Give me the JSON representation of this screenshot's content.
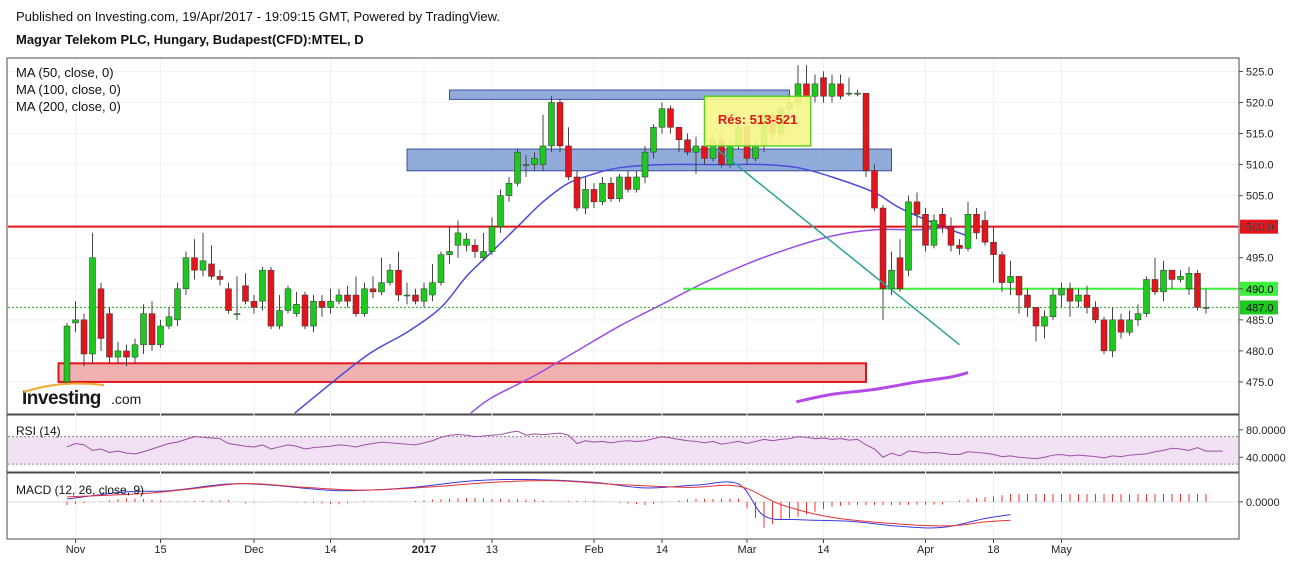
{
  "header": {
    "published": "Published on Investing.com, 19/Apr/2017 - 19:09:15 GMT, Powered by TradingView.",
    "symbol": "Magyar Telekom PLC, Hungary, Budapest(CFD):MTEL, D"
  },
  "watermark": {
    "brand": "Investing",
    "suffix": ".com"
  },
  "colors": {
    "up": "#1ec81e",
    "down": "#e3151c",
    "ma50": "#4b4bdc",
    "ma100": "#9b4be6",
    "ma200": "#b44be8",
    "resistance_line": "#e3151c",
    "level_line": "#3cf03c",
    "trend": "#2aa198",
    "rsi": "#a04ba8",
    "macd": "#3a3ae0",
    "signal": "#e83232"
  },
  "chart_data": {
    "type": "candlestick",
    "indicators": [
      "MA (50, close, 0)",
      "MA (100, close, 0)",
      "MA (200, close, 0)"
    ],
    "ylim": [
      470,
      527
    ],
    "yticks": [
      475,
      480,
      485,
      490,
      495,
      500,
      505,
      510,
      515,
      520,
      525
    ],
    "x_ticks": [
      {
        "i": 1,
        "label": "Nov"
      },
      {
        "i": 11,
        "label": "15"
      },
      {
        "i": 22,
        "label": "Dec"
      },
      {
        "i": 31,
        "label": "14"
      },
      {
        "i": 42,
        "label": "2017"
      },
      {
        "i": 50,
        "label": "13"
      },
      {
        "i": 62,
        "label": "Feb"
      },
      {
        "i": 70,
        "label": "14"
      },
      {
        "i": 80,
        "label": "Mar"
      },
      {
        "i": 89,
        "label": "14"
      },
      {
        "i": 101,
        "label": "Apr"
      },
      {
        "i": 109,
        "label": "18"
      },
      {
        "i": 117,
        "label": "May"
      }
    ],
    "candles": [
      [
        475.0,
        484.0,
        474.5,
        484.5
      ],
      [
        484.5,
        485.0,
        483.0,
        488.0
      ],
      [
        485.0,
        479.5,
        477.5,
        486.0
      ],
      [
        479.5,
        495.0,
        478.0,
        499.0
      ],
      [
        490.0,
        482.0,
        480.0,
        491.0
      ],
      [
        486.0,
        479.0,
        478.0,
        487.0
      ],
      [
        479.0,
        480.0,
        478.0,
        481.5
      ],
      [
        480.0,
        479.0,
        477.5,
        481.0
      ],
      [
        479.0,
        481.0,
        478.0,
        482.0
      ],
      [
        481.0,
        486.0,
        479.5,
        487.5
      ],
      [
        486.0,
        481.0,
        480.0,
        488.0
      ],
      [
        481.0,
        484.0,
        480.5,
        485.0
      ],
      [
        484.0,
        485.5,
        483.5,
        487.0
      ],
      [
        485.0,
        490.0,
        484.0,
        491.0
      ],
      [
        490.0,
        495.0,
        489.0,
        496.0
      ],
      [
        495.0,
        493.0,
        491.5,
        498.0
      ],
      [
        493.0,
        494.5,
        492.0,
        499.0
      ],
      [
        494.0,
        492.0,
        491.5,
        497.0
      ],
      [
        492.0,
        491.5,
        490.5,
        493.0
      ],
      [
        490.0,
        486.5,
        486.0,
        491.0
      ],
      [
        486.0,
        486.0,
        485.0,
        492.0
      ],
      [
        490.5,
        488.0,
        487.5,
        492.5
      ],
      [
        488.0,
        487.0,
        486.0,
        489.0
      ],
      [
        488.0,
        493.0,
        486.5,
        493.5
      ],
      [
        493.0,
        484.0,
        483.5,
        493.5
      ],
      [
        484.0,
        486.5,
        483.5,
        489.0
      ],
      [
        486.5,
        490.0,
        486.0,
        490.5
      ],
      [
        486.0,
        487.5,
        485.5,
        489.5
      ],
      [
        489.0,
        484.0,
        483.5,
        489.5
      ],
      [
        484.0,
        488.0,
        483.0,
        489.0
      ],
      [
        488.0,
        487.0,
        485.5,
        489.0
      ],
      [
        487.0,
        488.0,
        486.0,
        490.0
      ],
      [
        488.0,
        489.0,
        487.5,
        490.0
      ],
      [
        489.0,
        488.0,
        487.0,
        490.5
      ],
      [
        489.0,
        486.0,
        485.5,
        492.0
      ],
      [
        486.0,
        490.0,
        485.5,
        491.0
      ],
      [
        490.0,
        489.5,
        488.5,
        492.0
      ],
      [
        489.5,
        491.0,
        489.0,
        495.0
      ],
      [
        491.0,
        493.0,
        490.5,
        494.0
      ],
      [
        493.0,
        489.0,
        488.0,
        496.0
      ],
      [
        489.0,
        489.0,
        487.5,
        491.0
      ],
      [
        489.0,
        488.0,
        487.5,
        490.0
      ],
      [
        488.0,
        490.0,
        487.0,
        491.0
      ],
      [
        489.0,
        491.0,
        488.0,
        494.0
      ],
      [
        491.0,
        495.5,
        490.5,
        496.0
      ],
      [
        495.5,
        496.0,
        494.0,
        500.0
      ],
      [
        497.0,
        499.0,
        495.0,
        501.0
      ],
      [
        497.0,
        498.0,
        496.0,
        499.0
      ],
      [
        497.0,
        496.0,
        495.0,
        498.0
      ],
      [
        495.0,
        496.0,
        494.5,
        499.0
      ],
      [
        496.0,
        500.0,
        495.5,
        501.5
      ],
      [
        500.0,
        505.0,
        499.0,
        506.0
      ],
      [
        505.0,
        507.0,
        504.0,
        508.0
      ],
      [
        507.0,
        512.0,
        506.5,
        512.5
      ],
      [
        510.0,
        510.0,
        508.0,
        511.5
      ],
      [
        510.0,
        511.0,
        509.0,
        512.0
      ],
      [
        510.0,
        513.0,
        509.0,
        518.0
      ],
      [
        513.0,
        520.0,
        512.0,
        521.0
      ],
      [
        520.0,
        513.0,
        512.0,
        520.5
      ],
      [
        513.0,
        508.0,
        507.5,
        516.0
      ],
      [
        508.0,
        503.0,
        502.5,
        509.0
      ],
      [
        503.0,
        506.0,
        502.0,
        508.0
      ],
      [
        506.0,
        504.0,
        503.0,
        507.0
      ],
      [
        504.0,
        507.0,
        503.5,
        508.0
      ],
      [
        507.0,
        504.5,
        504.0,
        508.0
      ],
      [
        504.5,
        508.0,
        504.0,
        508.5
      ],
      [
        508.0,
        506.0,
        505.5,
        509.0
      ],
      [
        506.0,
        508.0,
        505.5,
        509.0
      ],
      [
        508.0,
        512.0,
        507.0,
        513.0
      ],
      [
        512.0,
        516.0,
        511.0,
        516.5
      ],
      [
        516.0,
        519.0,
        515.0,
        520.0
      ],
      [
        519.0,
        516.0,
        515.0,
        519.5
      ],
      [
        516.0,
        514.0,
        512.0,
        516.0
      ],
      [
        514.0,
        512.0,
        511.5,
        515.0
      ],
      [
        512.0,
        513.0,
        508.5,
        514.5
      ],
      [
        513.0,
        511.0,
        510.0,
        514.0
      ],
      [
        511.0,
        514.0,
        510.5,
        515.0
      ],
      [
        514.0,
        510.0,
        509.5,
        515.5
      ],
      [
        510.0,
        513.0,
        509.5,
        514.0
      ],
      [
        513.0,
        516.0,
        512.5,
        516.5
      ],
      [
        516.0,
        511.0,
        510.0,
        517.0
      ],
      [
        511.0,
        513.0,
        510.5,
        514.0
      ],
      [
        513.0,
        518.0,
        512.0,
        518.5
      ],
      [
        518.0,
        515.0,
        514.0,
        518.5
      ],
      [
        515.0,
        519.0,
        514.0,
        519.5
      ],
      [
        519.0,
        520.0,
        518.5,
        521.0
      ],
      [
        520.0,
        523.0,
        519.0,
        526.0
      ],
      [
        523.0,
        521.0,
        520.0,
        526.0
      ],
      [
        521.0,
        523.0,
        520.0,
        524.5
      ],
      [
        524.0,
        521.0,
        520.0,
        525.0
      ],
      [
        521.0,
        523.0,
        520.0,
        524.5
      ],
      [
        523.0,
        521.0,
        520.5,
        524.5
      ],
      [
        521.5,
        521.5,
        521.0,
        524.0
      ],
      [
        521.5,
        521.5,
        521.0,
        522.0
      ],
      [
        521.5,
        509.0,
        508.0,
        521.0
      ],
      [
        509.0,
        503.0,
        502.5,
        510.0
      ],
      [
        503.0,
        490.0,
        485.0,
        503.5
      ],
      [
        490.0,
        493.0,
        489.0,
        496.0
      ],
      [
        495.0,
        490.0,
        489.5,
        498.0
      ],
      [
        493.0,
        504.0,
        492.0,
        505.0
      ],
      [
        504.0,
        502.0,
        500.0,
        505.5
      ],
      [
        502.0,
        497.0,
        496.0,
        503.0
      ],
      [
        497.0,
        501.0,
        496.5,
        502.0
      ],
      [
        502.0,
        500.0,
        499.0,
        503.0
      ],
      [
        500.0,
        497.0,
        496.0,
        501.5
      ],
      [
        497.0,
        496.5,
        495.5,
        498.0
      ],
      [
        496.5,
        502.0,
        496.0,
        504.0
      ],
      [
        502.0,
        499.0,
        498.0,
        503.0
      ],
      [
        501.0,
        497.5,
        497.0,
        502.5
      ],
      [
        497.5,
        495.5,
        491.0,
        500.0
      ],
      [
        495.5,
        491.0,
        489.5,
        496.0
      ],
      [
        491.0,
        492.0,
        489.0,
        494.5
      ],
      [
        492.0,
        489.0,
        486.0,
        492.0
      ],
      [
        489.0,
        487.0,
        485.5,
        490.0
      ],
      [
        487.0,
        484.0,
        481.5,
        487.0
      ],
      [
        484.0,
        485.5,
        482.0,
        486.5
      ],
      [
        485.5,
        489.0,
        485.0,
        490.0
      ],
      [
        489.0,
        490.0,
        487.0,
        491.0
      ],
      [
        490.0,
        488.0,
        485.5,
        491.0
      ],
      [
        488.0,
        489.0,
        487.0,
        490.0
      ],
      [
        489.0,
        487.0,
        486.0,
        490.5
      ],
      [
        487.0,
        485.0,
        484.5,
        488.0
      ],
      [
        485.0,
        480.0,
        479.5,
        485.5
      ],
      [
        480.0,
        485.0,
        479.0,
        487.0
      ],
      [
        485.0,
        483.0,
        482.0,
        486.0
      ],
      [
        483.0,
        485.0,
        482.5,
        486.5
      ],
      [
        485.0,
        486.0,
        484.0,
        487.5
      ],
      [
        486.0,
        491.5,
        485.5,
        492.0
      ],
      [
        491.5,
        489.5,
        489.0,
        495.0
      ],
      [
        489.5,
        493.0,
        488.0,
        494.5
      ],
      [
        493.0,
        491.5,
        490.0,
        493.0
      ],
      [
        491.5,
        492.0,
        491.0,
        493.0
      ],
      [
        490.0,
        492.5,
        489.0,
        493.5
      ],
      [
        492.5,
        487.0,
        486.5,
        493.0
      ],
      [
        487.0,
        487.0,
        486.0,
        490.0
      ]
    ],
    "ma50_anchors": [
      [
        26.8,
        470
      ],
      [
        35,
        479
      ],
      [
        40,
        483
      ],
      [
        44,
        487
      ],
      [
        47,
        492
      ],
      [
        50,
        496
      ],
      [
        53,
        500
      ],
      [
        56,
        504
      ],
      [
        59,
        507
      ],
      [
        62,
        508.5
      ],
      [
        65,
        509.5
      ],
      [
        70,
        510
      ],
      [
        77,
        510
      ],
      [
        82,
        510
      ],
      [
        86,
        509.5
      ],
      [
        90,
        508
      ],
      [
        95,
        505.5
      ],
      [
        98,
        503
      ],
      [
        103,
        500
      ],
      [
        106,
        498.5
      ]
    ],
    "ma100_anchors": [
      [
        47.5,
        470
      ],
      [
        50,
        472.5
      ],
      [
        55,
        476
      ],
      [
        60,
        480
      ],
      [
        65,
        484
      ],
      [
        70,
        487.5
      ],
      [
        75,
        491
      ],
      [
        80,
        494
      ],
      [
        85,
        496.5
      ],
      [
        90,
        498.5
      ],
      [
        95,
        499.5
      ],
      [
        100,
        499.5
      ],
      [
        103,
        499.8
      ],
      [
        106,
        500
      ]
    ],
    "ma200_anchors": [
      [
        85.8,
        471.8
      ],
      [
        90,
        473
      ],
      [
        95,
        473.8
      ],
      [
        100,
        475
      ],
      [
        104,
        475.8
      ],
      [
        106,
        476.5
      ]
    ],
    "levels": [
      {
        "name": "resistance-500",
        "price": 500.0,
        "label": "500.0",
        "start": 0
      },
      {
        "name": "support-490",
        "price": 490.0,
        "label": "490.0",
        "start": 72.5
      }
    ],
    "last_price": {
      "price": 487.0,
      "label": "487.0"
    },
    "zones": [
      {
        "name": "zone-upper",
        "from_i": 45,
        "to_i": 85,
        "low": 520.5,
        "high": 522.0,
        "fill": "#7e9ed4"
      },
      {
        "name": "zone-middle",
        "from_i": 40,
        "to_i": 97,
        "low": 509.0,
        "high": 512.5,
        "fill": "#7e9ed4"
      },
      {
        "name": "zone-support",
        "from_i": -1,
        "to_i": 94,
        "low": 475.0,
        "high": 478.0,
        "fill": "#f1a9a9"
      }
    ],
    "annotation": {
      "text": "Rés: 513-521",
      "from_i": 75,
      "to_i": 87.5,
      "low": 513.0,
      "high": 521.0
    },
    "trendline": {
      "from": [
        76,
        513
      ],
      "to": [
        105,
        481
      ]
    },
    "rsi": {
      "label": "RSI (14)",
      "ylim": [
        20,
        100
      ],
      "yticks": [
        {
          "v": 80,
          "label": "80.0000"
        },
        {
          "v": 40,
          "label": "40.0000"
        }
      ],
      "band": [
        30,
        70
      ],
      "values": [
        55,
        60,
        58,
        50,
        52,
        47,
        49,
        46,
        45,
        48,
        52,
        56,
        60,
        62,
        66,
        70,
        69,
        68,
        67,
        60,
        58,
        56,
        55,
        58,
        52,
        55,
        58,
        56,
        52,
        54,
        55,
        56,
        58,
        57,
        55,
        58,
        60,
        62,
        61,
        60,
        59,
        58,
        61,
        64,
        69,
        72,
        73,
        72,
        70,
        71,
        72,
        73,
        76,
        78,
        72,
        74,
        73,
        74,
        75,
        72,
        60,
        64,
        62,
        63,
        61,
        63,
        64,
        63,
        64,
        67,
        70,
        68,
        66,
        64,
        63,
        61,
        63,
        59,
        61,
        63,
        60,
        63,
        66,
        64,
        66,
        67,
        70,
        69,
        67,
        68,
        66,
        67,
        65,
        66,
        58,
        52,
        40,
        46,
        42,
        49,
        48,
        46,
        47,
        46,
        44,
        44,
        48,
        47,
        46,
        44,
        41,
        42,
        40,
        39,
        38,
        40,
        43,
        44,
        42,
        43,
        42,
        41,
        39,
        42,
        41,
        43,
        44,
        45,
        48,
        50,
        53,
        52,
        50,
        54,
        49,
        49,
        49
      ]
    },
    "macd": {
      "label": "MACD (12, 26, close, 9)",
      "ylim": [
        -6.5,
        5.0
      ],
      "yticks": [
        {
          "v": 0,
          "label": "0.0000"
        }
      ],
      "macd_anchors": [
        [
          0,
          0.5
        ],
        [
          7,
          1.8
        ],
        [
          12,
          2.0
        ],
        [
          19,
          3.2
        ],
        [
          24,
          3.0
        ],
        [
          32,
          2.0
        ],
        [
          40,
          2.5
        ],
        [
          48,
          3.8
        ],
        [
          55,
          4.0
        ],
        [
          62,
          3.5
        ],
        [
          68,
          2.5
        ],
        [
          74,
          3.0
        ],
        [
          79,
          3.2
        ],
        [
          82,
          -2.5
        ],
        [
          86,
          -3.2
        ],
        [
          92,
          -3.5
        ],
        [
          98,
          -4.4
        ],
        [
          103,
          -4.6
        ],
        [
          108,
          -3.0
        ],
        [
          111,
          -2.3
        ]
      ],
      "signal_anchors": [
        [
          0,
          0.9
        ],
        [
          9,
          1.5
        ],
        [
          15,
          2.4
        ],
        [
          21,
          3.3
        ],
        [
          28,
          2.6
        ],
        [
          35,
          2.1
        ],
        [
          43,
          2.7
        ],
        [
          50,
          3.5
        ],
        [
          57,
          3.8
        ],
        [
          65,
          3.1
        ],
        [
          73,
          2.6
        ],
        [
          79,
          2.8
        ],
        [
          84,
          -0.5
        ],
        [
          90,
          -2.8
        ],
        [
          98,
          -4.0
        ],
        [
          104,
          -4.3
        ],
        [
          108,
          -3.6
        ],
        [
          111,
          -3.3
        ]
      ]
    }
  }
}
